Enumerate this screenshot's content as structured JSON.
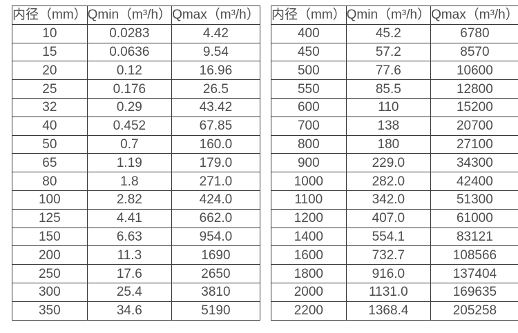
{
  "colors": {
    "border": "#383838",
    "text": "#4d4d4d",
    "background": "#ffffff"
  },
  "chart_data": [
    {
      "type": "table",
      "title": "",
      "columns": [
        "内径（mm）",
        "Qmin（m³/h）",
        "Qmax（m³/h）"
      ],
      "rows": [
        [
          "10",
          "0.0283",
          "4.42"
        ],
        [
          "15",
          "0.0636",
          "9.54"
        ],
        [
          "20",
          "0.12",
          "16.96"
        ],
        [
          "25",
          "0.176",
          "26.5"
        ],
        [
          "32",
          "0.29",
          "43.42"
        ],
        [
          "40",
          "0.452",
          "67.85"
        ],
        [
          "50",
          "0.7",
          "160.0"
        ],
        [
          "65",
          "1.19",
          "179.0"
        ],
        [
          "80",
          "1.8",
          "271.0"
        ],
        [
          "100",
          "2.82",
          "424.0"
        ],
        [
          "125",
          "4.41",
          "662.0"
        ],
        [
          "150",
          "6.63",
          "954.0"
        ],
        [
          "200",
          "11.3",
          "1690"
        ],
        [
          "250",
          "17.6",
          "2650"
        ],
        [
          "300",
          "25.4",
          "3810"
        ],
        [
          "350",
          "34.6",
          "5190"
        ]
      ]
    },
    {
      "type": "table",
      "title": "",
      "columns": [
        "内径（mm）",
        "Qmin（m³/h）",
        "Qmax（m³/h）"
      ],
      "rows": [
        [
          "400",
          "45.2",
          "6780"
        ],
        [
          "450",
          "57.2",
          "8570"
        ],
        [
          "500",
          "77.6",
          "10600"
        ],
        [
          "550",
          "85.5",
          "12800"
        ],
        [
          "600",
          "110",
          "15200"
        ],
        [
          "700",
          "138",
          "20700"
        ],
        [
          "800",
          "180",
          "27100"
        ],
        [
          "900",
          "229.0",
          "34300"
        ],
        [
          "1000",
          "282.0",
          "42400"
        ],
        [
          "1100",
          "342.0",
          "51300"
        ],
        [
          "1200",
          "407.0",
          "61000"
        ],
        [
          "1400",
          "554.1",
          "83121"
        ],
        [
          "1600",
          "732.7",
          "108566"
        ],
        [
          "1800",
          "916.0",
          "137404"
        ],
        [
          "2000",
          "1131.0",
          "169635"
        ],
        [
          "2200",
          "1368.4",
          "205258"
        ]
      ]
    }
  ]
}
